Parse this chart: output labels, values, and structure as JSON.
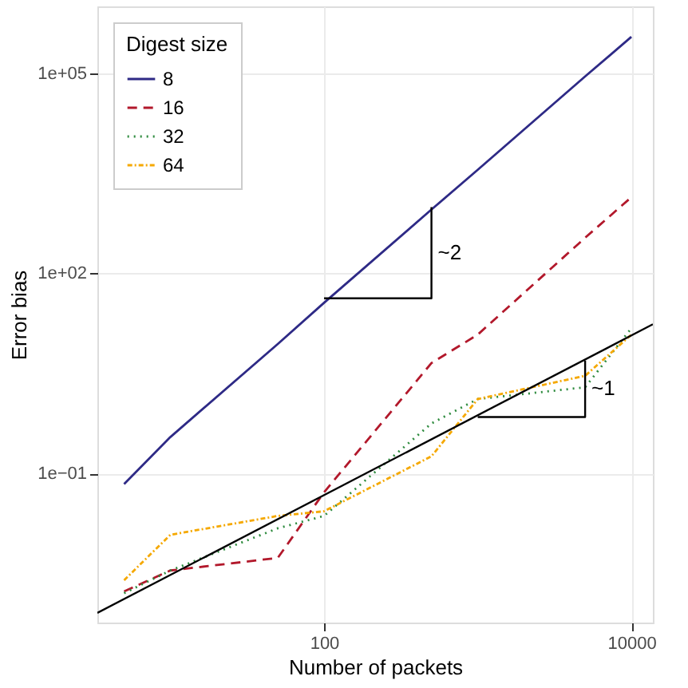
{
  "chart_data": {
    "type": "line",
    "xlabel": "Number of packets",
    "ylabel": "Error bias",
    "legend_title": "Digest size",
    "log": "xy",
    "grid": true,
    "legend": "top left",
    "xlim": [
      3.35,
      13800
    ],
    "xticks": [
      100,
      10000
    ],
    "ylim": [
      0.00058,
      1000000
    ],
    "yticks": [
      {
        "value": 0.1,
        "label": "1e−01"
      },
      {
        "value": 100,
        "label": "1e+02"
      },
      {
        "value": 100000,
        "label": "1e+05"
      }
    ],
    "x": [
      5,
      10,
      50,
      100,
      500,
      1000,
      5000,
      10000
    ],
    "series": [
      {
        "name": "8",
        "color": "#2e2a86",
        "line_style": "solid",
        "values": [
          0.069,
          0.35,
          8.7,
          36,
          900,
          3550,
          89000,
          350000
        ]
      },
      {
        "name": "16",
        "color": "#b2182b",
        "line_style": "dashed",
        "values": [
          0.0017,
          0.0035,
          0.0054,
          0.052,
          4.5,
          12,
          340,
          1380
        ]
      },
      {
        "name": "32",
        "color": "#2e8b3e",
        "line_style": "dotted",
        "values": [
          0.0016,
          0.0035,
          0.015,
          0.023,
          0.56,
          1.3,
          1.95,
          15
        ]
      },
      {
        "name": "64",
        "color": "#f5a800",
        "line_style": "dashdot",
        "values": [
          0.0025,
          0.012,
          0.023,
          0.027,
          0.18,
          1.3,
          2.9,
          12
        ]
      },
      {
        "color": "#000000",
        "line_style": "solid",
        "x": [
          3.35,
          13800
        ],
        "values": [
          0.00081,
          17.2
        ]
      },
      {
        "color": "#000000",
        "line_style": "solid",
        "x": [
          100,
          500,
          500
        ],
        "values": [
          42,
          42,
          980
        ]
      },
      {
        "color": "#000000",
        "line_style": "solid",
        "x": [
          1000,
          5000,
          5000
        ],
        "values": [
          0.7,
          0.7,
          4.9
        ]
      }
    ],
    "annotations": [
      "~2",
      "~1"
    ]
  }
}
